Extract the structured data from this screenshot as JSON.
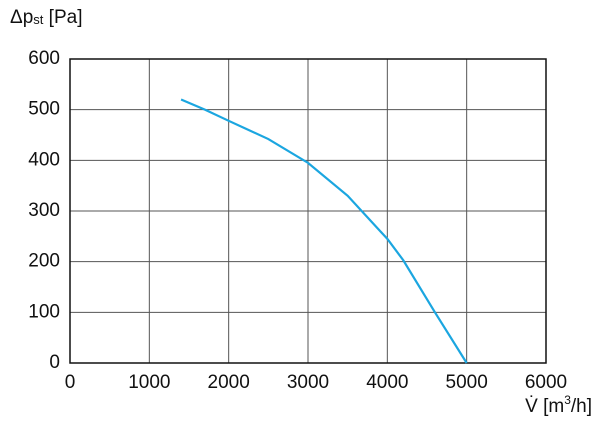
{
  "chart_data": {
    "type": "line",
    "y_label": [
      "Δp",
      "st",
      " [Pa]"
    ],
    "x_label": [
      "V̇ [m",
      "3",
      "/h]"
    ],
    "series": [
      {
        "color": "#1ba6e0",
        "x": [
          1400,
          1700,
          2000,
          2500,
          3000,
          3500,
          4000,
          4200,
          4600,
          5000
        ],
        "values": [
          520,
          500,
          478,
          442,
          395,
          330,
          245,
          203,
          100,
          0
        ]
      }
    ],
    "xlim": [
      0,
      6000
    ],
    "xticks": [
      0,
      1000,
      2000,
      3000,
      4000,
      5000,
      6000
    ],
    "ylim": [
      0,
      600
    ],
    "yticks": [
      0,
      100,
      200,
      300,
      400,
      500,
      600
    ],
    "grid": true
  }
}
